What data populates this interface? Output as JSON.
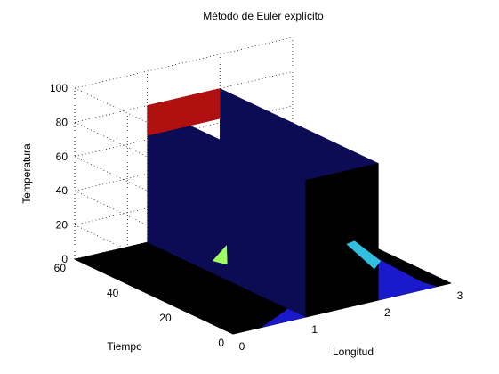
{
  "chart_data": {
    "type": "surface",
    "title": "Método de Euler explícito",
    "xlabel": "Longitud",
    "ylabel": "Tiempo",
    "zlabel": "Temperatura",
    "xlim": [
      0,
      3
    ],
    "ylim": [
      0,
      60
    ],
    "zlim": [
      0,
      100
    ],
    "x_ticks": [
      0,
      1,
      2,
      3
    ],
    "y_ticks": [
      0,
      20,
      40,
      60
    ],
    "z_ticks": [
      0,
      20,
      40,
      60,
      80,
      100
    ],
    "grid": true,
    "initial_profile": {
      "x": [
        0,
        1,
        1,
        2,
        2,
        3
      ],
      "temperature": [
        0,
        0,
        80,
        80,
        0,
        0
      ]
    },
    "high_region_x": [
      1,
      2
    ],
    "high_value": 80,
    "colormap": "jet"
  }
}
